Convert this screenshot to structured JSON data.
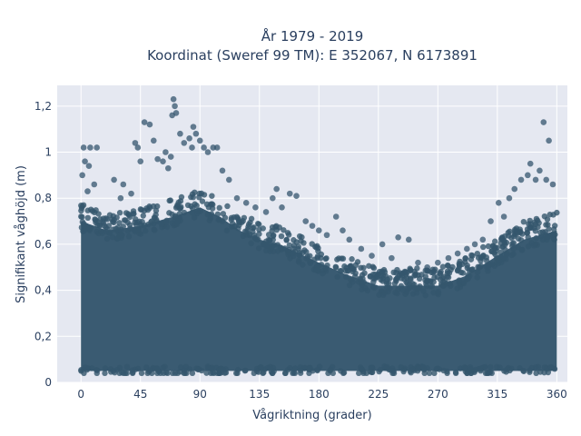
{
  "chart_data": {
    "type": "scatter",
    "title_lines": [
      "År 1979 - 2019",
      "Koordinat (Sweref 99 TM): E 352067, N 6173891"
    ],
    "xlabel": "Vågriktning (grader)",
    "ylabel": "Signifikant våghöjd (m)",
    "xlim": [
      -18,
      368
    ],
    "ylim": [
      0,
      1.29
    ],
    "x_ticks": [
      0,
      45,
      90,
      135,
      180,
      225,
      270,
      315,
      360
    ],
    "y_ticks": [
      0,
      0.2,
      0.4,
      0.6,
      0.8,
      1,
      1.2
    ],
    "y_tick_labels": [
      "0",
      "0,2",
      "0,4",
      "0,6",
      "0,8",
      "1",
      "1,2"
    ],
    "grid": true,
    "marker_color": "#34566d",
    "plot_background": "#e5e8f1",
    "dense_band": {
      "x_range": [
        0,
        360
      ],
      "y_min": 0.05,
      "upper_envelope": [
        [
          0,
          0.7
        ],
        [
          20,
          0.66
        ],
        [
          45,
          0.68
        ],
        [
          70,
          0.72
        ],
        [
          90,
          0.76
        ],
        [
          105,
          0.72
        ],
        [
          120,
          0.66
        ],
        [
          135,
          0.62
        ],
        [
          150,
          0.6
        ],
        [
          165,
          0.56
        ],
        [
          180,
          0.52
        ],
        [
          200,
          0.47
        ],
        [
          225,
          0.42
        ],
        [
          250,
          0.42
        ],
        [
          270,
          0.42
        ],
        [
          290,
          0.46
        ],
        [
          315,
          0.55
        ],
        [
          335,
          0.62
        ],
        [
          360,
          0.66
        ]
      ]
    },
    "outliers": [
      {
        "x": 2,
        "y": 1.02
      },
      {
        "x": 7,
        "y": 1.02
      },
      {
        "x": 12,
        "y": 1.02
      },
      {
        "x": 3,
        "y": 0.96
      },
      {
        "x": 6,
        "y": 0.94
      },
      {
        "x": 1,
        "y": 0.9
      },
      {
        "x": 10,
        "y": 0.86
      },
      {
        "x": 5,
        "y": 0.83
      },
      {
        "x": 25,
        "y": 0.88
      },
      {
        "x": 32,
        "y": 0.86
      },
      {
        "x": 38,
        "y": 0.82
      },
      {
        "x": 30,
        "y": 0.8
      },
      {
        "x": 41,
        "y": 1.04
      },
      {
        "x": 43,
        "y": 1.02
      },
      {
        "x": 45,
        "y": 0.96
      },
      {
        "x": 48,
        "y": 1.13
      },
      {
        "x": 52,
        "y": 1.12
      },
      {
        "x": 55,
        "y": 1.05
      },
      {
        "x": 58,
        "y": 0.97
      },
      {
        "x": 62,
        "y": 0.96
      },
      {
        "x": 64,
        "y": 1.0
      },
      {
        "x": 66,
        "y": 0.93
      },
      {
        "x": 68,
        "y": 0.98
      },
      {
        "x": 69,
        "y": 1.16
      },
      {
        "x": 70,
        "y": 1.23
      },
      {
        "x": 71,
        "y": 1.2
      },
      {
        "x": 72,
        "y": 1.17
      },
      {
        "x": 75,
        "y": 1.08
      },
      {
        "x": 78,
        "y": 1.04
      },
      {
        "x": 82,
        "y": 1.06
      },
      {
        "x": 84,
        "y": 1.02
      },
      {
        "x": 85,
        "y": 1.11
      },
      {
        "x": 87,
        "y": 1.08
      },
      {
        "x": 90,
        "y": 1.05
      },
      {
        "x": 93,
        "y": 1.02
      },
      {
        "x": 96,
        "y": 1.0
      },
      {
        "x": 100,
        "y": 1.02
      },
      {
        "x": 103,
        "y": 1.02
      },
      {
        "x": 107,
        "y": 0.92
      },
      {
        "x": 112,
        "y": 0.88
      },
      {
        "x": 118,
        "y": 0.8
      },
      {
        "x": 125,
        "y": 0.78
      },
      {
        "x": 132,
        "y": 0.76
      },
      {
        "x": 140,
        "y": 0.74
      },
      {
        "x": 145,
        "y": 0.8
      },
      {
        "x": 148,
        "y": 0.84
      },
      {
        "x": 152,
        "y": 0.76
      },
      {
        "x": 158,
        "y": 0.82
      },
      {
        "x": 163,
        "y": 0.81
      },
      {
        "x": 170,
        "y": 0.7
      },
      {
        "x": 175,
        "y": 0.68
      },
      {
        "x": 180,
        "y": 0.66
      },
      {
        "x": 186,
        "y": 0.64
      },
      {
        "x": 193,
        "y": 0.72
      },
      {
        "x": 198,
        "y": 0.66
      },
      {
        "x": 203,
        "y": 0.62
      },
      {
        "x": 212,
        "y": 0.58
      },
      {
        "x": 220,
        "y": 0.55
      },
      {
        "x": 228,
        "y": 0.6
      },
      {
        "x": 235,
        "y": 0.54
      },
      {
        "x": 240,
        "y": 0.63
      },
      {
        "x": 248,
        "y": 0.62
      },
      {
        "x": 255,
        "y": 0.52
      },
      {
        "x": 262,
        "y": 0.5
      },
      {
        "x": 270,
        "y": 0.52
      },
      {
        "x": 278,
        "y": 0.54
      },
      {
        "x": 285,
        "y": 0.56
      },
      {
        "x": 292,
        "y": 0.58
      },
      {
        "x": 298,
        "y": 0.6
      },
      {
        "x": 304,
        "y": 0.62
      },
      {
        "x": 310,
        "y": 0.7
      },
      {
        "x": 316,
        "y": 0.78
      },
      {
        "x": 320,
        "y": 0.72
      },
      {
        "x": 324,
        "y": 0.8
      },
      {
        "x": 328,
        "y": 0.84
      },
      {
        "x": 333,
        "y": 0.88
      },
      {
        "x": 338,
        "y": 0.9
      },
      {
        "x": 340,
        "y": 0.95
      },
      {
        "x": 344,
        "y": 0.88
      },
      {
        "x": 347,
        "y": 0.92
      },
      {
        "x": 350,
        "y": 1.13
      },
      {
        "x": 352,
        "y": 0.88
      },
      {
        "x": 354,
        "y": 1.05
      },
      {
        "x": 357,
        "y": 0.86
      }
    ]
  }
}
